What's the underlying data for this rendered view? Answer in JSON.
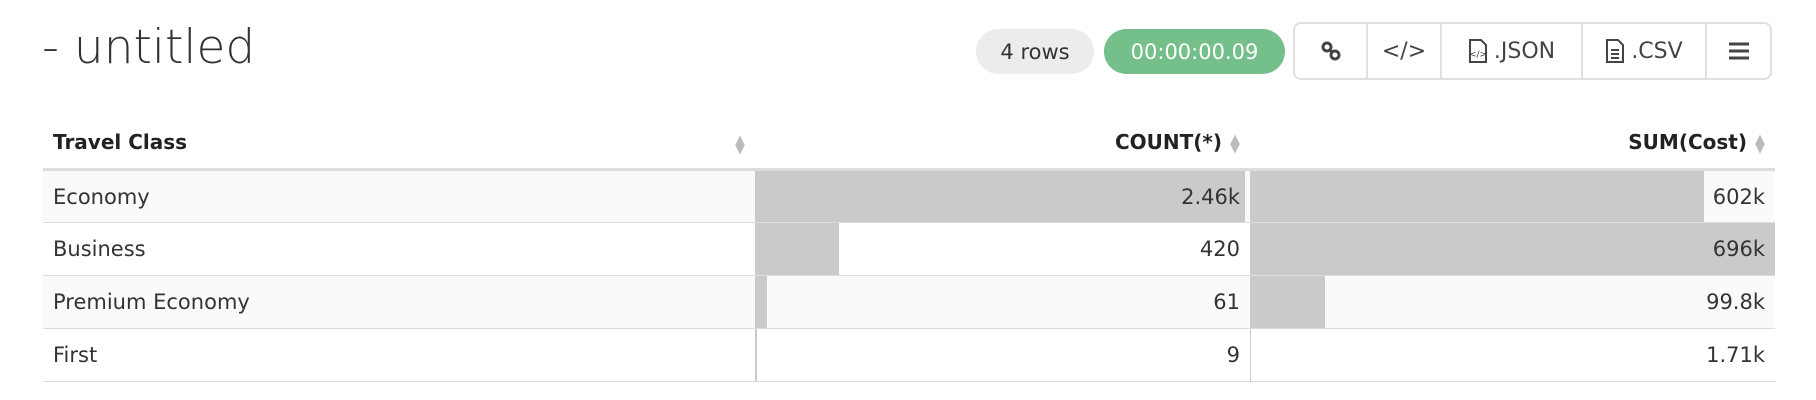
{
  "title": "- untitled",
  "row_count": "4 rows",
  "elapsed": "00:00:00.09",
  "toolbar": {
    "json_label": ".JSON",
    "csv_label": ".CSV"
  },
  "columns": [
    "Travel Class",
    "COUNT(*)",
    "SUM(Cost)"
  ],
  "rows": [
    {
      "cls": "Economy",
      "count": "2.46k",
      "sum": "602k",
      "count_frac": 1.0,
      "sum_frac": 0.865
    },
    {
      "cls": "Business",
      "count": "420",
      "sum": "696k",
      "count_frac": 0.171,
      "sum_frac": 1.0
    },
    {
      "cls": "Premium Economy",
      "count": "61",
      "sum": "99.8k",
      "count_frac": 0.025,
      "sum_frac": 0.143
    },
    {
      "cls": "First",
      "count": "9",
      "sum": "1.71k",
      "count_frac": 0.004,
      "sum_frac": 0.0025
    }
  ]
}
